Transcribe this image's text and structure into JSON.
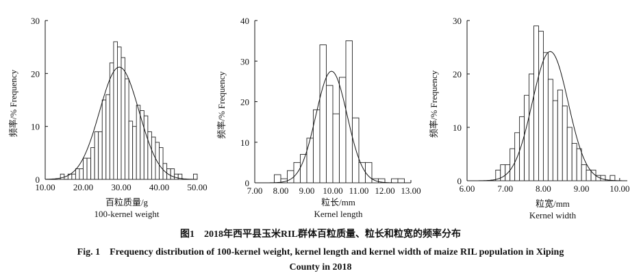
{
  "caption": {
    "cn": "图1　2018年西平县玉米RIL群体百粒质量、粒长和粒宽的频率分布",
    "en_line1": "Fig. 1　Frequency distribution of 100-kernel weight, kernel length and kernel width of maize RIL population in Xiping",
    "en_line2": "County in 2018"
  },
  "chart_data": [
    {
      "type": "bar",
      "ylabel": "频率/% Frequency",
      "xlabel_cn": "百粒质量/g",
      "xlabel_en": "100-kernel weight",
      "x_ticks": [
        "10.00",
        "20.00",
        "30.00",
        "40.00",
        "50.00"
      ],
      "y_ticks": [
        "0",
        "10",
        "20",
        "30"
      ],
      "xlim": [
        10,
        50
      ],
      "ylim": [
        0,
        30
      ],
      "bin_width": 1,
      "bin_starts": [
        14,
        15,
        16,
        17,
        18,
        19,
        20,
        21,
        22,
        23,
        24,
        25,
        26,
        27,
        28,
        29,
        30,
        31,
        32,
        33,
        34,
        35,
        36,
        37,
        38,
        39,
        40,
        41,
        42,
        43,
        44,
        45,
        46,
        47,
        48,
        49
      ],
      "values": [
        1,
        0,
        1,
        1,
        2,
        2,
        4,
        4,
        6,
        9,
        9,
        15,
        16,
        22,
        26,
        25,
        23,
        19,
        11,
        10,
        14,
        13,
        12,
        9,
        8,
        7,
        6,
        3,
        2,
        2,
        1,
        1,
        0,
        0,
        0,
        1
      ],
      "curve": {
        "mean": 29.5,
        "sd": 5.2,
        "peak": 21.2
      }
    },
    {
      "type": "bar",
      "ylabel": "频率/% Frequency",
      "xlabel_cn": "粒长/mm",
      "xlabel_en": "Kernel length",
      "x_ticks": [
        "7.00",
        "8.00",
        "9.00",
        "10.00",
        "11.00",
        "12.00",
        "13.00"
      ],
      "y_ticks": [
        "0",
        "10",
        "20",
        "30",
        "40"
      ],
      "xlim": [
        7,
        13
      ],
      "ylim": [
        0,
        40
      ],
      "bin_width": 0.25,
      "bin_starts": [
        7.75,
        8.0,
        8.25,
        8.5,
        8.75,
        9.0,
        9.25,
        9.5,
        9.75,
        10.0,
        10.25,
        10.5,
        10.75,
        11.0,
        11.25,
        11.5,
        11.75,
        12.0,
        12.25,
        12.5
      ],
      "values": [
        2,
        1,
        3,
        5,
        7,
        11,
        18,
        34,
        24,
        17,
        26,
        35,
        16,
        5,
        5,
        1,
        1,
        0,
        1,
        1
      ],
      "curve": {
        "mean": 9.95,
        "sd": 0.6,
        "peak": 27.5
      }
    },
    {
      "type": "bar",
      "ylabel": "频率/% Frequency",
      "xlabel_cn": "粒宽/mm",
      "xlabel_en": "Kernel width",
      "x_ticks": [
        "6.00",
        "7.00",
        "8.00",
        "9.00",
        "10.00"
      ],
      "y_ticks": [
        "0",
        "10",
        "20",
        "30"
      ],
      "xlim": [
        6,
        10.2
      ],
      "ylim": [
        0,
        30
      ],
      "bin_width": 0.125,
      "bin_starts": [
        6.75,
        6.875,
        7.0,
        7.125,
        7.25,
        7.375,
        7.5,
        7.625,
        7.75,
        7.875,
        8.0,
        8.125,
        8.25,
        8.375,
        8.5,
        8.625,
        8.75,
        8.875,
        9.0,
        9.125,
        9.25,
        9.375,
        9.5,
        9.625,
        9.75
      ],
      "values": [
        2,
        3,
        3,
        6,
        9,
        12,
        16,
        20,
        29,
        28,
        24,
        19,
        15,
        17,
        14,
        10,
        7,
        6,
        3,
        2,
        2,
        1,
        1,
        0,
        1
      ],
      "curve": {
        "mean": 8.18,
        "sd": 0.47,
        "peak": 24.2
      }
    }
  ]
}
